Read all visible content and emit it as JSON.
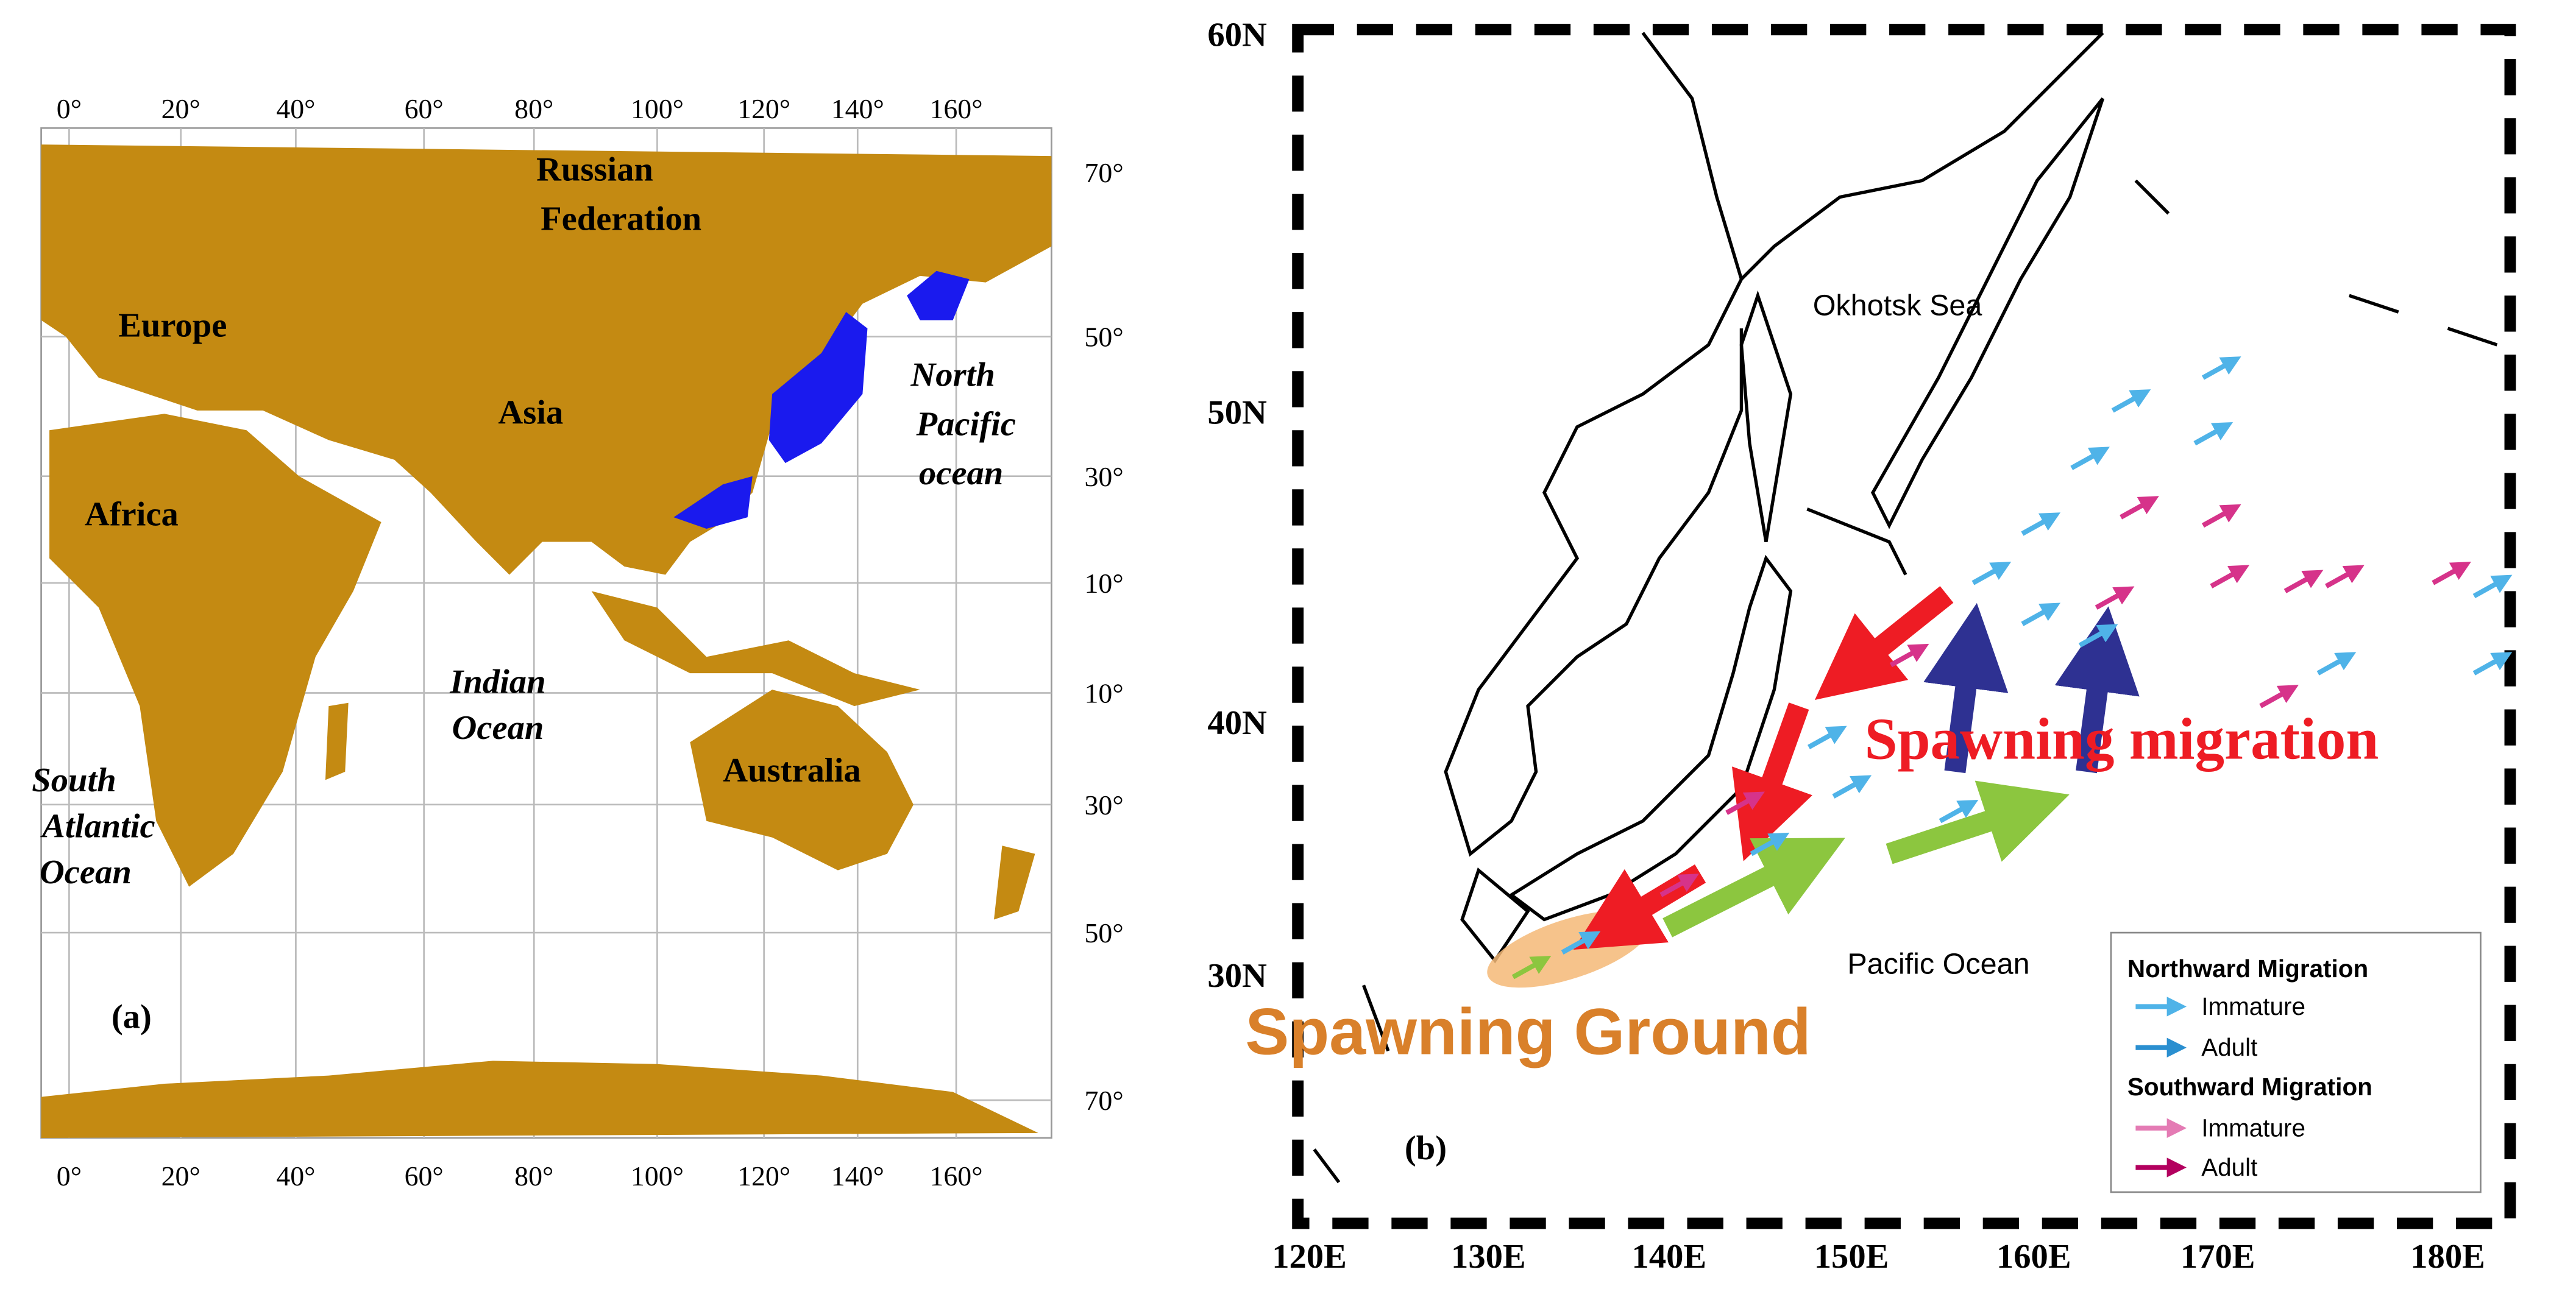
{
  "panel_a": {
    "label": "(a)",
    "top_longitudes": [
      "0°",
      "20°",
      "40°",
      "60°",
      "80°",
      "100°",
      "120°",
      "140°",
      "160°"
    ],
    "bottom_longitudes": [
      "0°",
      "20°",
      "40°",
      "60°",
      "80°",
      "100°",
      "120°",
      "140°",
      "160°"
    ],
    "latitudes": [
      "70°",
      "50°",
      "30°",
      "10°",
      "10°",
      "30°",
      "50°",
      "70°"
    ],
    "regions": {
      "russia": [
        "Russian",
        "Federation"
      ],
      "europe": "Europe",
      "asia": "Asia",
      "africa": "Africa",
      "north_pacific": [
        "North",
        "Pacific",
        "ocean"
      ],
      "indian": [
        "Indian",
        "Ocean"
      ],
      "australia": "Australia",
      "south_atlantic": [
        "South",
        "Atlantic",
        "Ocean"
      ]
    }
  },
  "panel_b": {
    "label": "(b)",
    "latitudes": [
      "60N",
      "50N",
      "40N",
      "30N"
    ],
    "longitudes": [
      "120E",
      "130E",
      "140E",
      "150E",
      "160E",
      "170E",
      "180E"
    ],
    "okhotsk": "Okhotsk Sea",
    "pacific": "Pacific Ocean",
    "spawning_migration": "Spawning migration",
    "spawning_ground": "Spawning Ground",
    "legend": {
      "northward": "Northward Migration",
      "north_immature": "Immature",
      "north_adult": "Adult",
      "southward": "Southward Migration",
      "south_immature": "Immature",
      "south_adult": "Adult"
    }
  }
}
